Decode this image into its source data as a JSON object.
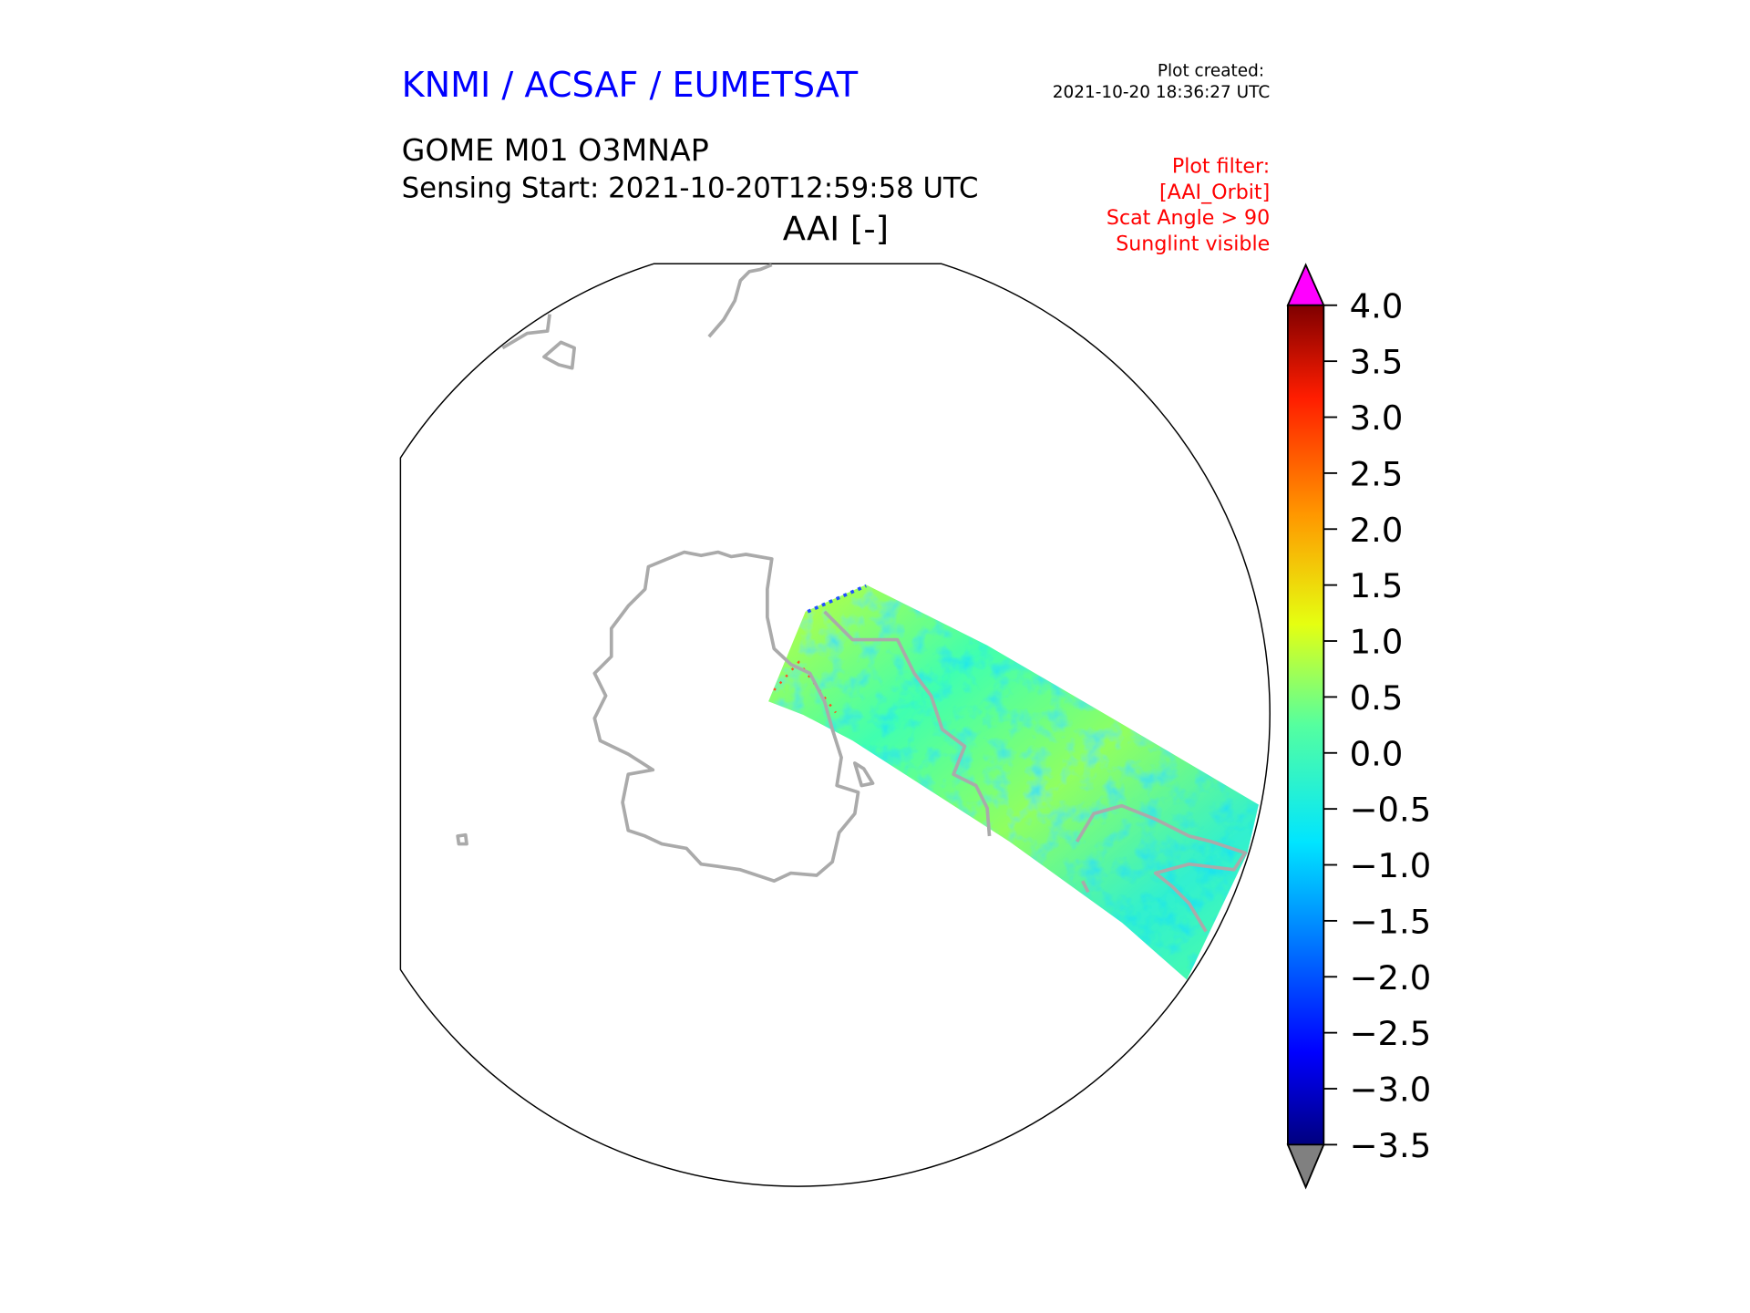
{
  "header": {
    "agency": "KNMI / ACSAF / EUMETSAT",
    "created_label": "Plot created:",
    "created_value": "2021-10-20 18:36:27 UTC",
    "product": "GOME M01 O3MNAP",
    "sensing": "Sensing Start: 2021-10-20T12:59:58 UTC",
    "variable": "AAI [-]",
    "filter": [
      "Plot filter:",
      "[AAI_Orbit]",
      "Scat Angle > 90",
      "Sunglint visible"
    ]
  },
  "colors": {
    "agency": "#0000ff",
    "filter": "#ff0000",
    "coast": "#aaaaaa",
    "over": "#ff00ff",
    "under": "#808080"
  },
  "chart_data": {
    "type": "heatmap",
    "title": "AAI [-]",
    "projection": "south polar stereographic",
    "colormap": "jet",
    "vmin": -3.5,
    "vmax": 4.0,
    "extend": "both",
    "colorbar_ticks": [
      "4.0",
      "3.5",
      "3.0",
      "2.5",
      "2.0",
      "1.5",
      "1.0",
      "0.5",
      "0.0",
      "−0.5",
      "−1.0",
      "−1.5",
      "−2.0",
      "−2.5",
      "−3.0",
      "−3.5"
    ],
    "colorbar_tick_values": [
      4.0,
      3.5,
      3.0,
      2.5,
      2.0,
      1.5,
      1.0,
      0.5,
      0.0,
      -0.5,
      -1.0,
      -1.5,
      -2.0,
      -2.5,
      -3.0,
      -3.5
    ],
    "typical_swath_range": [
      -1.5,
      1.5
    ]
  }
}
